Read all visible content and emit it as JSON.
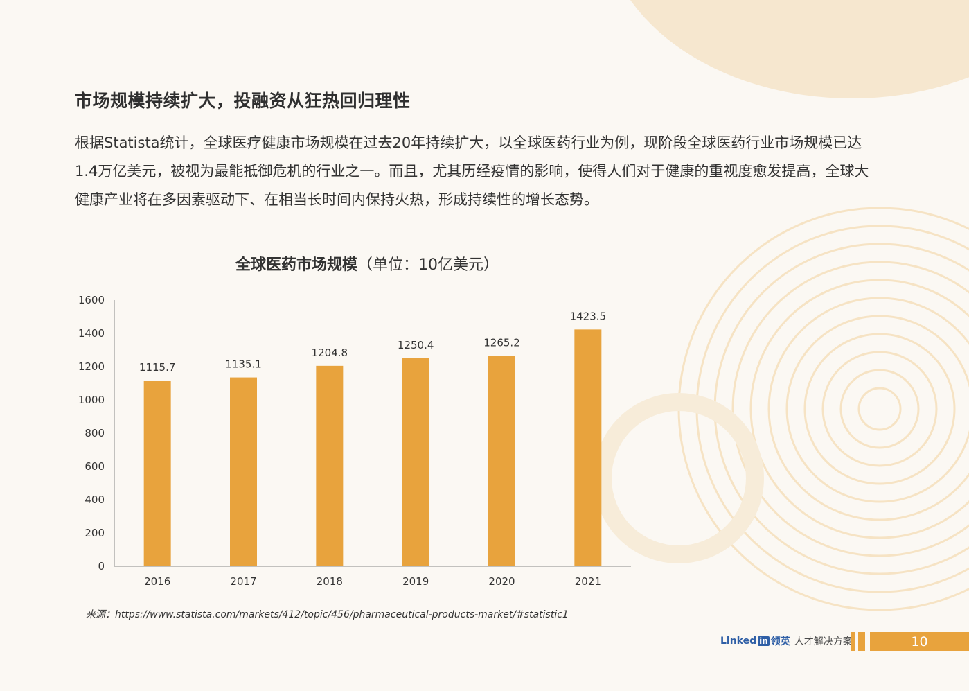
{
  "heading": "市场规模持续扩大，投融资从狂热回归理性",
  "paragraph": "根据Statista统计，全球医疗健康市场规模在过去20年持续扩大，以全球医药行业为例，现阶段全球医药行业市场规模已达1.4万亿美元，被视为最能抵御危机的行业之一。而且，尤其历经疫情的影响，使得人们对于健康的重视度愈发提高，全球大健康产业将在多因素驱动下、在相当长时间内保持火热，形成持续性的增长态势。",
  "chart_title_bold": "全球医药市场规模",
  "chart_title_rest": "（单位：10亿美元）",
  "source": "来源：https://www.statista.com/markets/412/topic/456/pharmaceutical-products-market/#statistic1",
  "footer": {
    "brand_linked": "Linked",
    "brand_in": "in",
    "brand_cn": "领英",
    "brand_tagline": "人才解决方案",
    "page_number": "10"
  },
  "colors": {
    "bar": "#e8a33d",
    "accent": "#e8a33d",
    "deco": "#f6e3c4"
  },
  "chart_data": {
    "type": "bar",
    "title": "全球医药市场规模（单位：10亿美元）",
    "categories": [
      "2016",
      "2017",
      "2018",
      "2019",
      "2020",
      "2021"
    ],
    "values": [
      1115.7,
      1135.1,
      1204.8,
      1250.4,
      1265.2,
      1423.5
    ],
    "value_labels": [
      "1115.7",
      "1135.1",
      "1204.8",
      "1250.4",
      "1265.2",
      "1423.5"
    ],
    "ylim": [
      0,
      1600
    ],
    "yticks": [
      0,
      200,
      400,
      600,
      800,
      1000,
      1200,
      1400,
      1600
    ],
    "xlabel": "",
    "ylabel": "",
    "grid": false,
    "legend": "none"
  }
}
